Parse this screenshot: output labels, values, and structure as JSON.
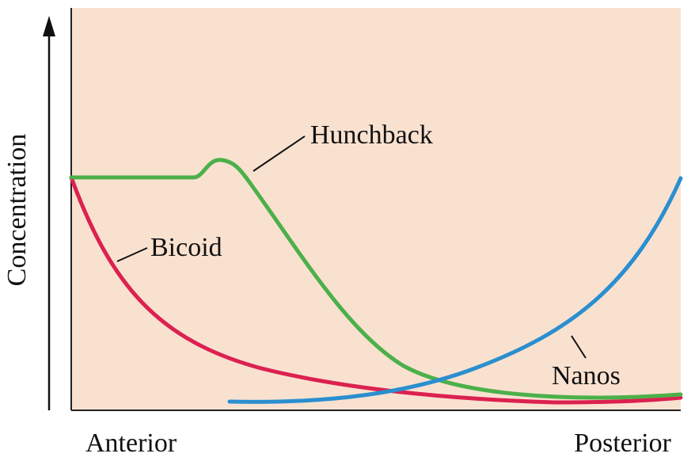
{
  "axis_label": "Concentration",
  "x_ends": {
    "left": "Anterior",
    "right": "Posterior"
  },
  "curves": [
    {
      "label": "Hunchback"
    },
    {
      "label": "Bicoid"
    },
    {
      "label": "Nanos"
    }
  ]
}
